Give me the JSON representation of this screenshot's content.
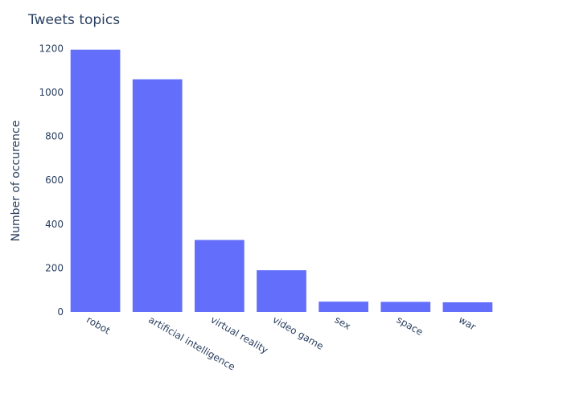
{
  "chart_data": {
    "type": "bar",
    "title": "Tweets topics",
    "xlabel": "",
    "ylabel": "Number of occurence",
    "categories": [
      "robot",
      "artificial intelligence",
      "virtual reality",
      "video game",
      "sex",
      "space",
      "war"
    ],
    "values": [
      1195,
      1060,
      328,
      190,
      47,
      46,
      44
    ],
    "ylim": [
      0,
      1260
    ],
    "yticks": [
      0,
      200,
      400,
      600,
      800,
      1000,
      1200
    ],
    "bar_color": "#636efa",
    "grid": false,
    "legend": "none"
  }
}
